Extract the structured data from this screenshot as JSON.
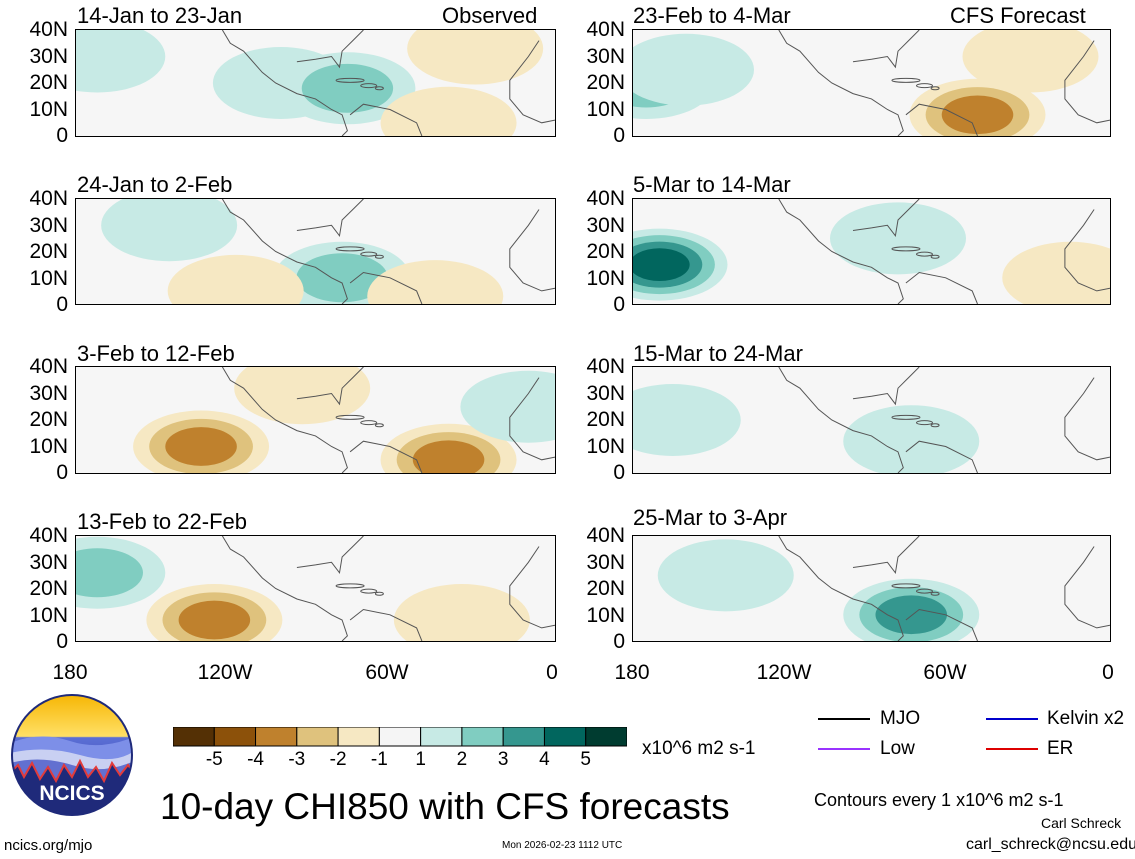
{
  "chart_data": {
    "type": "heatmap",
    "title": "10-day CHI850 with CFS forecasts",
    "variable": "CHI850",
    "units": "x10^6 m2 s-1",
    "column_headers": {
      "left": "Observed",
      "right": "CFS Forecast"
    },
    "x_ticks": [
      "180",
      "120W",
      "60W",
      "0"
    ],
    "y_ticks": [
      "40N",
      "30N",
      "20N",
      "10N",
      "0"
    ],
    "x_range_deg": [
      -180,
      0
    ],
    "y_range_deg": [
      0,
      40
    ],
    "panels_observed": [
      {
        "period": "14-Jan to 23-Jan",
        "anomalies": [
          {
            "lon": -172,
            "lat": 30,
            "value": 1.5
          },
          {
            "lon": -103,
            "lat": 20,
            "value": 1.5
          },
          {
            "lon": -78,
            "lat": 18,
            "value": 2.5
          },
          {
            "lon": -40,
            "lat": 5,
            "value": -2
          },
          {
            "lon": -30,
            "lat": 33,
            "value": -1.5
          }
        ]
      },
      {
        "period": "24-Jan to 2-Feb",
        "anomalies": [
          {
            "lon": -145,
            "lat": 30,
            "value": 1.5
          },
          {
            "lon": -80,
            "lat": 10,
            "value": 3
          },
          {
            "lon": -120,
            "lat": 5,
            "value": -1.5
          },
          {
            "lon": -45,
            "lat": 3,
            "value": -1.5
          }
        ]
      },
      {
        "period": "3-Feb to 12-Feb",
        "anomalies": [
          {
            "lon": -133,
            "lat": 10,
            "value": -3.5
          },
          {
            "lon": -40,
            "lat": 5,
            "value": -3.5
          },
          {
            "lon": -95,
            "lat": 32,
            "value": -1.5
          },
          {
            "lon": -10,
            "lat": 25,
            "value": 1.5
          }
        ]
      },
      {
        "period": "13-Feb to 22-Feb",
        "anomalies": [
          {
            "lon": -128,
            "lat": 8,
            "value": -3.5
          },
          {
            "lon": -172,
            "lat": 26,
            "value": 2.5
          },
          {
            "lon": -35,
            "lat": 8,
            "value": -1.5
          }
        ]
      }
    ],
    "panels_forecast": [
      {
        "period": "23-Feb to 4-Mar",
        "anomalies": [
          {
            "lon": -175,
            "lat": 20,
            "value": 3
          },
          {
            "lon": -160,
            "lat": 25,
            "value": 1.5
          },
          {
            "lon": -50,
            "lat": 8,
            "value": -3.5
          },
          {
            "lon": -30,
            "lat": 30,
            "value": -2
          }
        ]
      },
      {
        "period": "5-Mar to 14-Mar",
        "anomalies": [
          {
            "lon": -170,
            "lat": 15,
            "value": 4.5
          },
          {
            "lon": -80,
            "lat": 25,
            "value": 1.5
          },
          {
            "lon": -15,
            "lat": 10,
            "value": -1.5
          }
        ]
      },
      {
        "period": "15-Mar to 24-Mar",
        "anomalies": [
          {
            "lon": -165,
            "lat": 20,
            "value": 2
          },
          {
            "lon": -75,
            "lat": 12,
            "value": 1.5
          }
        ]
      },
      {
        "period": "25-Mar to 3-Apr",
        "anomalies": [
          {
            "lon": -75,
            "lat": 10,
            "value": 3.5
          },
          {
            "lon": -145,
            "lat": 25,
            "value": 2
          }
        ]
      }
    ],
    "colorbar": {
      "labels": [
        "-5",
        "-4",
        "-3",
        "-2",
        "-1",
        "1",
        "2",
        "3",
        "4",
        "5"
      ],
      "colors": [
        "#543005",
        "#8c510a",
        "#bf812d",
        "#dfc27d",
        "#f6e8c3",
        "#f5f5f5",
        "#c7eae5",
        "#80cdc1",
        "#35978f",
        "#01665e",
        "#003c30"
      ]
    },
    "legend": [
      {
        "label": "MJO",
        "color": "#000000"
      },
      {
        "label": "Kelvin x2",
        "color": "#0000cc"
      },
      {
        "label": "Low",
        "color": "#9933ff"
      },
      {
        "label": "ER",
        "color": "#dd0000"
      }
    ]
  },
  "footer": {
    "contour_note": "Contours every 1 x10^6 m2 s-1",
    "author": "Carl Schreck",
    "email": "carl_schreck@ncsu.edu",
    "site": "ncics.org/mjo",
    "timestamp": "Mon 2026-02-23 1112 UTC",
    "logo_text": "NCICS"
  }
}
